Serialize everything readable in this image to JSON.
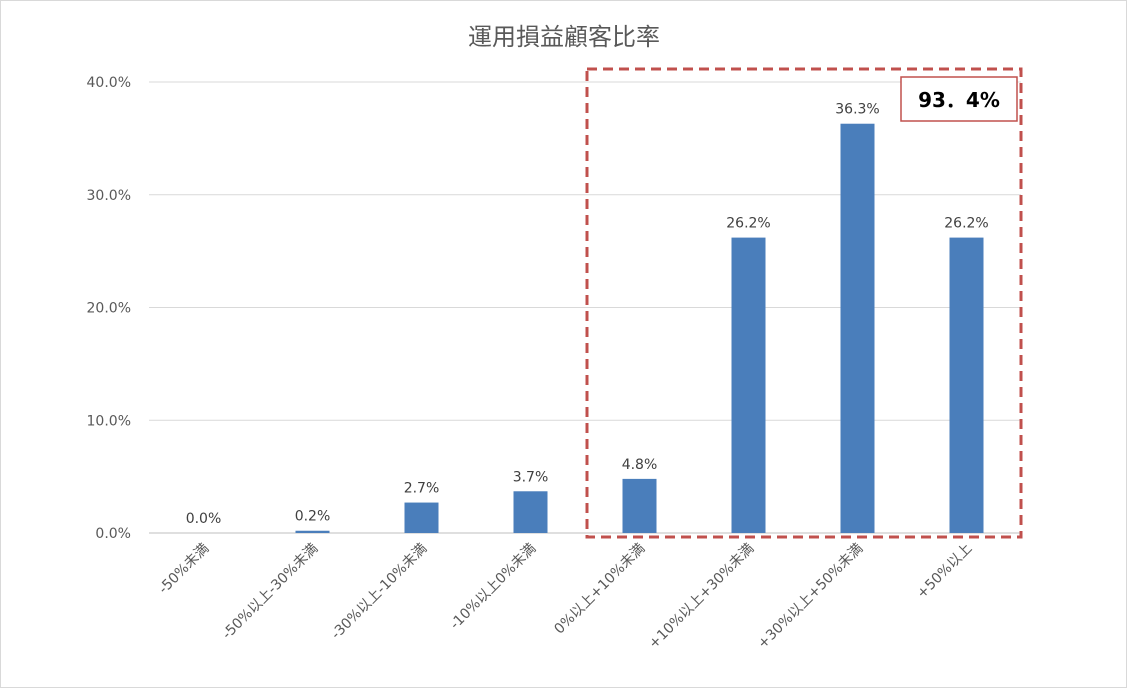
{
  "chart_data": {
    "type": "bar",
    "title": "運用損益顧客比率",
    "categories": [
      "-50%未満",
      "-50%以上-30%未満",
      "-30%以上-10%未満",
      "-10%以上0%未満",
      "0%以上+10%未満",
      "+10%以上+30%未満",
      "+30%以上+50%未満",
      "+50%以上"
    ],
    "values": [
      0.0,
      0.2,
      2.7,
      3.7,
      4.8,
      26.2,
      36.3,
      26.2
    ],
    "data_labels": [
      "0.0%",
      "0.2%",
      "2.7%",
      "3.7%",
      "4.8%",
      "26.2%",
      "36.3%",
      "26.2%"
    ],
    "y_ticks": [
      "0.0%",
      "10.0%",
      "20.0%",
      "30.0%",
      "40.0%"
    ],
    "ylim": [
      0,
      40
    ],
    "grid": true,
    "bar_color": "#4a7ebb",
    "highlight": {
      "label": "93．4%",
      "from_category_index": 4,
      "to_category_index": 7,
      "color": "#c0504d"
    }
  }
}
